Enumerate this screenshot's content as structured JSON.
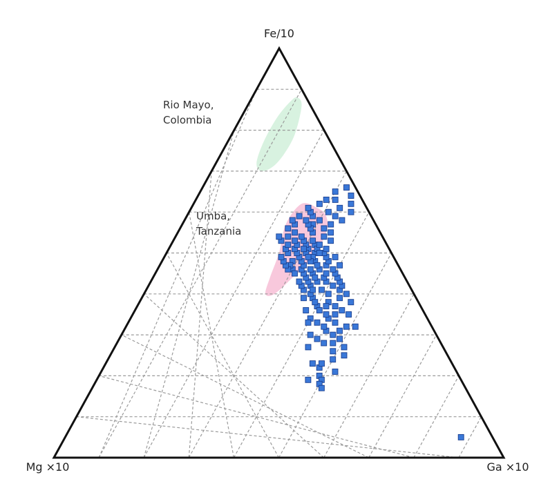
{
  "chart_data": {
    "type": "scatter",
    "subtype": "ternary",
    "title": "",
    "vertex_labels": {
      "top": "Fe/10",
      "left": "Mg ×10",
      "right": "Ga ×10"
    },
    "grid": true,
    "grid_divisions": 10,
    "point_color": "#3a78d8",
    "point_stroke": "#1b3f8f",
    "regions": [
      {
        "label_lines": [
          "Rio Mayo,",
          "Colombia"
        ],
        "color": "#d8f2e0",
        "points": [
          [
            0.88,
            0.1
          ],
          [
            0.86,
            0.12
          ],
          [
            0.79,
            0.14
          ],
          [
            0.74,
            0.14
          ],
          [
            0.71,
            0.13
          ],
          [
            0.7,
            0.11
          ],
          [
            0.72,
            0.09
          ],
          [
            0.77,
            0.08
          ],
          [
            0.83,
            0.08
          ],
          [
            0.87,
            0.09
          ]
        ]
      },
      {
        "label_lines": [
          "Umba,",
          "Tanzania"
        ],
        "color": "#f8c8dc",
        "points": [
          [
            0.62,
            0.24
          ],
          [
            0.61,
            0.28
          ],
          [
            0.59,
            0.31
          ],
          [
            0.55,
            0.33
          ],
          [
            0.49,
            0.33
          ],
          [
            0.44,
            0.31
          ],
          [
            0.4,
            0.29
          ],
          [
            0.4,
            0.27
          ],
          [
            0.44,
            0.26
          ],
          [
            0.5,
            0.25
          ],
          [
            0.57,
            0.23
          ]
        ]
      }
    ],
    "points": [
      [
        0.05,
        0.88
      ],
      [
        0.19,
        0.47
      ],
      [
        0.2,
        0.49
      ],
      [
        0.22,
        0.48
      ],
      [
        0.23,
        0.46
      ],
      [
        0.23,
        0.48
      ],
      [
        0.19,
        0.5
      ],
      [
        0.27,
        0.43
      ],
      [
        0.28,
        0.46
      ],
      [
        0.29,
        0.44
      ],
      [
        0.28,
        0.48
      ],
      [
        0.26,
        0.49
      ],
      [
        0.31,
        0.45
      ],
      [
        0.3,
        0.42
      ],
      [
        0.31,
        0.48
      ],
      [
        0.32,
        0.49
      ],
      [
        0.33,
        0.42
      ],
      [
        0.34,
        0.44
      ],
      [
        0.33,
        0.46
      ],
      [
        0.32,
        0.51
      ],
      [
        0.35,
        0.45
      ],
      [
        0.36,
        0.46
      ],
      [
        0.35,
        0.48
      ],
      [
        0.37,
        0.4
      ],
      [
        0.37,
        0.44
      ],
      [
        0.38,
        0.47
      ],
      [
        0.39,
        0.38
      ],
      [
        0.38,
        0.42
      ],
      [
        0.39,
        0.44
      ],
      [
        0.4,
        0.41
      ],
      [
        0.41,
        0.39
      ],
      [
        0.41,
        0.43
      ],
      [
        0.4,
        0.45
      ],
      [
        0.42,
        0.41
      ],
      [
        0.43,
        0.39
      ],
      [
        0.42,
        0.43
      ],
      [
        0.43,
        0.42
      ],
      [
        0.44,
        0.38
      ],
      [
        0.44,
        0.41
      ],
      [
        0.45,
        0.38
      ],
      [
        0.45,
        0.4
      ],
      [
        0.46,
        0.36
      ],
      [
        0.46,
        0.39
      ],
      [
        0.47,
        0.37
      ],
      [
        0.47,
        0.4
      ],
      [
        0.48,
        0.34
      ],
      [
        0.48,
        0.37
      ],
      [
        0.49,
        0.36
      ],
      [
        0.49,
        0.38
      ],
      [
        0.5,
        0.33
      ],
      [
        0.5,
        0.35
      ],
      [
        0.51,
        0.35
      ],
      [
        0.51,
        0.31
      ],
      [
        0.52,
        0.32
      ],
      [
        0.53,
        0.35
      ],
      [
        0.54,
        0.33
      ],
      [
        0.55,
        0.3
      ],
      [
        0.55,
        0.34
      ],
      [
        0.56,
        0.32
      ],
      [
        0.57,
        0.29
      ],
      [
        0.57,
        0.33
      ],
      [
        0.58,
        0.3
      ],
      [
        0.58,
        0.35
      ],
      [
        0.59,
        0.33
      ],
      [
        0.6,
        0.31
      ],
      [
        0.6,
        0.36
      ],
      [
        0.61,
        0.33
      ],
      [
        0.62,
        0.35
      ],
      [
        0.64,
        0.34
      ],
      [
        0.63,
        0.31
      ],
      [
        0.41,
        0.35
      ],
      [
        0.42,
        0.36
      ],
      [
        0.43,
        0.35
      ],
      [
        0.44,
        0.34
      ],
      [
        0.45,
        0.33
      ],
      [
        0.46,
        0.32
      ],
      [
        0.47,
        0.32
      ],
      [
        0.48,
        0.31
      ],
      [
        0.49,
        0.3
      ],
      [
        0.5,
        0.29
      ],
      [
        0.51,
        0.28
      ],
      [
        0.52,
        0.3
      ],
      [
        0.53,
        0.29
      ],
      [
        0.54,
        0.28
      ],
      [
        0.4,
        0.37
      ],
      [
        0.41,
        0.37
      ],
      [
        0.43,
        0.37
      ],
      [
        0.45,
        0.35
      ],
      [
        0.47,
        0.35
      ],
      [
        0.49,
        0.33
      ],
      [
        0.51,
        0.33
      ],
      [
        0.52,
        0.28
      ],
      [
        0.53,
        0.27
      ],
      [
        0.54,
        0.25
      ],
      [
        0.55,
        0.26
      ],
      [
        0.44,
        0.36
      ],
      [
        0.46,
        0.34
      ],
      [
        0.48,
        0.33
      ],
      [
        0.5,
        0.31
      ],
      [
        0.42,
        0.34
      ],
      [
        0.43,
        0.33
      ],
      [
        0.46,
        0.3
      ],
      [
        0.48,
        0.29
      ],
      [
        0.45,
        0.31
      ],
      [
        0.47,
        0.29
      ],
      [
        0.52,
        0.33
      ],
      [
        0.53,
        0.31
      ],
      [
        0.5,
        0.34
      ],
      [
        0.51,
        0.3
      ],
      [
        0.49,
        0.32
      ],
      [
        0.56,
        0.29
      ],
      [
        0.57,
        0.28
      ],
      [
        0.58,
        0.27
      ],
      [
        0.59,
        0.28
      ],
      [
        0.6,
        0.27
      ],
      [
        0.39,
        0.36
      ],
      [
        0.38,
        0.39
      ],
      [
        0.36,
        0.41
      ],
      [
        0.37,
        0.42
      ],
      [
        0.35,
        0.43
      ],
      [
        0.34,
        0.4
      ],
      [
        0.36,
        0.38
      ],
      [
        0.33,
        0.4
      ],
      [
        0.32,
        0.44
      ],
      [
        0.3,
        0.47
      ],
      [
        0.29,
        0.49
      ],
      [
        0.27,
        0.51
      ],
      [
        0.25,
        0.52
      ],
      [
        0.24,
        0.5
      ],
      [
        0.21,
        0.52
      ],
      [
        0.18,
        0.5
      ],
      [
        0.17,
        0.51
      ],
      [
        0.46,
        0.29
      ],
      [
        0.47,
        0.28
      ],
      [
        0.48,
        0.27
      ],
      [
        0.49,
        0.26
      ],
      [
        0.5,
        0.27
      ],
      [
        0.51,
        0.26
      ],
      [
        0.52,
        0.26
      ],
      [
        0.53,
        0.24
      ],
      [
        0.54,
        0.23
      ],
      [
        0.56,
        0.24
      ],
      [
        0.57,
        0.25
      ],
      [
        0.58,
        0.24
      ],
      [
        0.59,
        0.25
      ],
      [
        0.61,
        0.26
      ],
      [
        0.62,
        0.28
      ],
      [
        0.63,
        0.29
      ],
      [
        0.65,
        0.3
      ],
      [
        0.66,
        0.32
      ]
    ]
  }
}
